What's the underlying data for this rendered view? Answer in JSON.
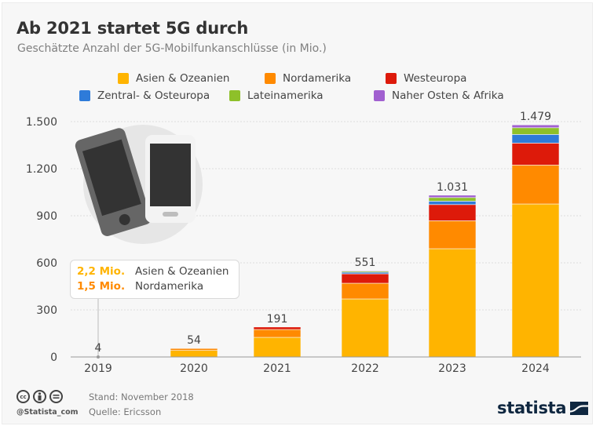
{
  "title": "Ab 2021 startet 5G durch",
  "subtitle": "Geschätzte Anzahl der 5G-Mobilfunkanschlüsse (in Mio.)",
  "legend": [
    {
      "label": "Asien & Ozeanien",
      "color": "#ffb400"
    },
    {
      "label": "Nordamerika",
      "color": "#ff8a00"
    },
    {
      "label": "Westeuropa",
      "color": "#dd1a0a"
    },
    {
      "label": "Zentral- & Osteuropa",
      "color": "#2e7bd9"
    },
    {
      "label": "Lateinamerika",
      "color": "#8ec02a"
    },
    {
      "label": "Naher Osten & Afrika",
      "color": "#a160d0"
    }
  ],
  "callout": {
    "rows": [
      {
        "value": "2,2 Mio.",
        "label": "Asien & Ozeanien",
        "color": "#ffb400"
      },
      {
        "value": "1,5 Mio.",
        "label": "Nordamerika",
        "color": "#ff8a00"
      }
    ]
  },
  "chart_data": {
    "type": "bar",
    "stacked": true,
    "title": "Ab 2021 startet 5G durch",
    "subtitle": "Geschätzte Anzahl der 5G-Mobilfunkanschlüsse (in Mio.)",
    "xlabel": "",
    "ylabel": "",
    "categories": [
      "2019",
      "2020",
      "2021",
      "2022",
      "2023",
      "2024"
    ],
    "totals": [
      4,
      54,
      191,
      551,
      1031,
      1479
    ],
    "total_labels": [
      "4",
      "54",
      "191",
      "551",
      "1.031",
      "1.479"
    ],
    "series": [
      {
        "name": "Asien & Ozeanien",
        "color": "#ffb400",
        "values": [
          2.2,
          42,
          125,
          370,
          690,
          975
        ]
      },
      {
        "name": "Nordamerika",
        "color": "#ff8a00",
        "values": [
          1.5,
          12,
          50,
          100,
          178,
          248
        ]
      },
      {
        "name": "Westeuropa",
        "color": "#dd1a0a",
        "values": [
          0.3,
          0,
          16,
          60,
          103,
          140
        ]
      },
      {
        "name": "Zentral- & Osteuropa",
        "color": "#2e7bd9",
        "values": [
          0,
          0,
          0,
          10,
          22,
          55
        ]
      },
      {
        "name": "Lateinamerika",
        "color": "#8ec02a",
        "values": [
          0,
          0,
          0,
          7,
          23,
          43
        ]
      },
      {
        "name": "Naher Osten & Afrika",
        "color": "#a160d0",
        "values": [
          0,
          0,
          0,
          4,
          15,
          18
        ]
      }
    ],
    "yticks": [
      0,
      300,
      600,
      900,
      1200,
      1500
    ],
    "ytick_labels": [
      "0",
      "300",
      "600",
      "900",
      "1.200",
      "1.500"
    ],
    "ylim": [
      0,
      1500
    ],
    "grid": true,
    "legend_position": "top"
  },
  "footer": {
    "stand": "Stand: November 2018",
    "quelle": "Quelle: Ericsson",
    "handle": "@Statista_com",
    "brand": "statista",
    "cc_icons": [
      "cc-icon",
      "by-icon",
      "nd-icon"
    ]
  }
}
